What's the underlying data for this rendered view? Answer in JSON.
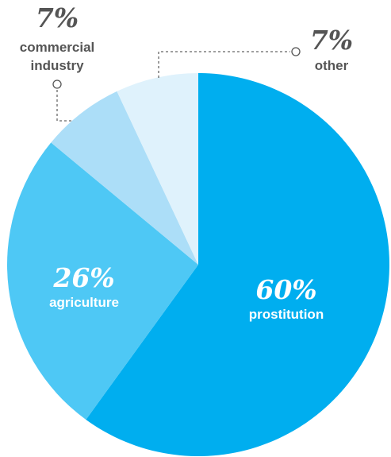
{
  "chart_data": {
    "type": "pie",
    "slices": [
      {
        "label": "prostitution",
        "value": 60,
        "value_label": "60%",
        "color": "#00aeef"
      },
      {
        "label": "agriculture",
        "value": 26,
        "value_label": "26%",
        "color": "#4ec8f5"
      },
      {
        "label": "commercial industry",
        "label_lines": [
          "commercial",
          "industry"
        ],
        "value": 7,
        "value_label": "7%",
        "color": "#acdef8"
      },
      {
        "label": "other",
        "value": 7,
        "value_label": "7%",
        "color": "#dff2fc"
      }
    ],
    "start": "top",
    "direction": "clockwise",
    "legend": "none"
  }
}
